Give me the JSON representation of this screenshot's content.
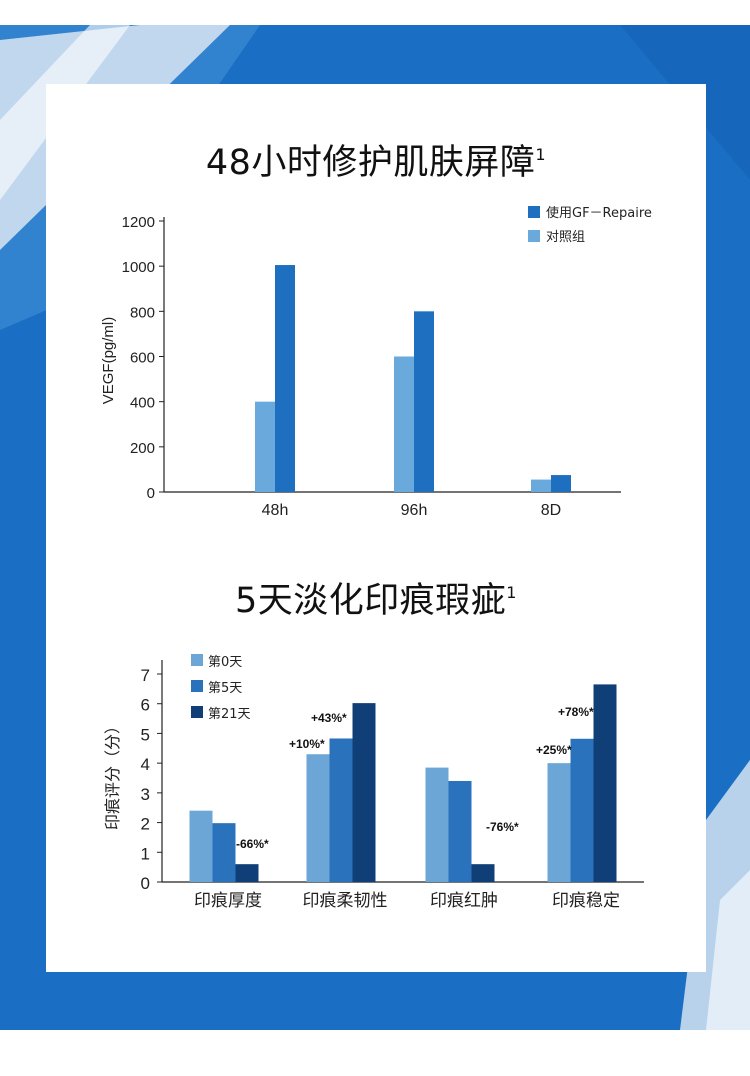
{
  "colors": {
    "background_blue": "#1a6fc4",
    "series_treated": "#1f6fc0",
    "series_control": "#6aa9dc",
    "day0": "#6ba6d6",
    "day5": "#2a72bc",
    "day21": "#103f78"
  },
  "section1": {
    "title": "48小时修护肌肤屏障",
    "sup": "1"
  },
  "section2": {
    "title": "5天淡化印痕瑕疵",
    "sup": "1"
  },
  "chart_data": [
    {
      "type": "bar",
      "ylabel": "VEGF(pg/ml)",
      "ylim": [
        0,
        1200
      ],
      "yticks": [
        "0",
        "200",
        "400",
        "600",
        "800",
        "1000",
        "1200"
      ],
      "categories": [
        "48h",
        "96h",
        "8D"
      ],
      "legend_position": "top-right",
      "series": [
        {
          "name": "对照组",
          "values": [
            400,
            600,
            55
          ],
          "color": "#6aa9dc"
        },
        {
          "name": "使用GF－Repaire",
          "values": [
            1005,
            800,
            75
          ],
          "color": "#1f6fc0"
        }
      ]
    },
    {
      "type": "bar",
      "ylabel": "印痕评分（分）",
      "ylim": [
        0,
        7
      ],
      "yticks": [
        "0",
        "1",
        "2",
        "3",
        "4",
        "5",
        "6",
        "7"
      ],
      "categories": [
        "印痕厚度",
        "印痕柔韧性",
        "印痕红肿",
        "印痕稳定"
      ],
      "legend_position": "top-left",
      "series": [
        {
          "name": "第0天",
          "values": [
            2.4,
            4.3,
            3.85,
            4.0
          ],
          "color": "#6ba6d6"
        },
        {
          "name": "第5天",
          "values": [
            1.98,
            4.83,
            3.4,
            4.82
          ],
          "color": "#2a72bc"
        },
        {
          "name": "第21天",
          "values": [
            0.6,
            6.02,
            0.6,
            6.65
          ],
          "color": "#103f78"
        }
      ],
      "annotations": [
        {
          "category": "印痕厚度",
          "text": "-66%*"
        },
        {
          "category": "印痕柔韧性",
          "text": "+10%*"
        },
        {
          "category": "印痕柔韧性",
          "text": "+43%*"
        },
        {
          "category": "印痕红肿",
          "text": "-76%*"
        },
        {
          "category": "印痕稳定",
          "text": "+25%*"
        },
        {
          "category": "印痕稳定",
          "text": "+78%*"
        }
      ]
    }
  ]
}
